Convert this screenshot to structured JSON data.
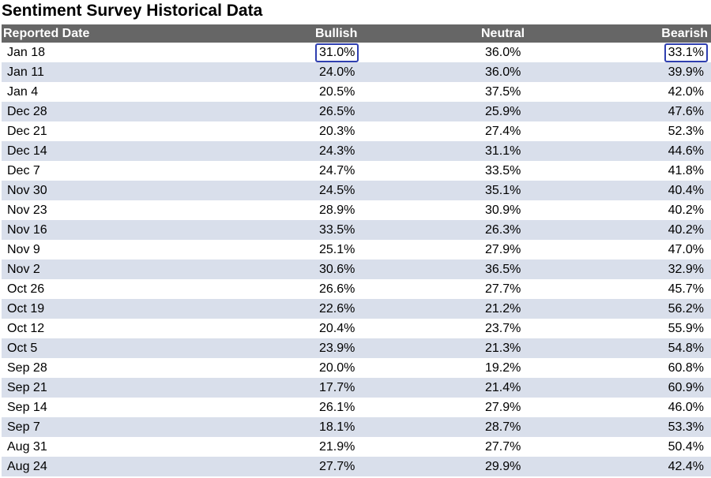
{
  "title": "Sentiment Survey Historical Data",
  "headers": {
    "date": "Reported Date",
    "bullish": "Bullish",
    "neutral": "Neutral",
    "bearish": "Bearish"
  },
  "highlight_color": "#2f3fb0",
  "header_bg": "#666666",
  "stripe_color": "#d9dfeb",
  "rows": [
    {
      "date": "Jan 18",
      "bullish": "31.0%",
      "neutral": "36.0%",
      "bearish": "33.1%",
      "hl_bullish": true,
      "hl_bearish": true
    },
    {
      "date": "Jan 11",
      "bullish": "24.0%",
      "neutral": "36.0%",
      "bearish": "39.9%"
    },
    {
      "date": "Jan 4",
      "bullish": "20.5%",
      "neutral": "37.5%",
      "bearish": "42.0%"
    },
    {
      "date": "Dec 28",
      "bullish": "26.5%",
      "neutral": "25.9%",
      "bearish": "47.6%"
    },
    {
      "date": "Dec 21",
      "bullish": "20.3%",
      "neutral": "27.4%",
      "bearish": "52.3%"
    },
    {
      "date": "Dec 14",
      "bullish": "24.3%",
      "neutral": "31.1%",
      "bearish": "44.6%"
    },
    {
      "date": "Dec 7",
      "bullish": "24.7%",
      "neutral": "33.5%",
      "bearish": "41.8%"
    },
    {
      "date": "Nov 30",
      "bullish": "24.5%",
      "neutral": "35.1%",
      "bearish": "40.4%"
    },
    {
      "date": "Nov 23",
      "bullish": "28.9%",
      "neutral": "30.9%",
      "bearish": "40.2%"
    },
    {
      "date": "Nov 16",
      "bullish": "33.5%",
      "neutral": "26.3%",
      "bearish": "40.2%"
    },
    {
      "date": "Nov 9",
      "bullish": "25.1%",
      "neutral": "27.9%",
      "bearish": "47.0%"
    },
    {
      "date": "Nov 2",
      "bullish": "30.6%",
      "neutral": "36.5%",
      "bearish": "32.9%"
    },
    {
      "date": "Oct 26",
      "bullish": "26.6%",
      "neutral": "27.7%",
      "bearish": "45.7%"
    },
    {
      "date": "Oct 19",
      "bullish": "22.6%",
      "neutral": "21.2%",
      "bearish": "56.2%"
    },
    {
      "date": "Oct 12",
      "bullish": "20.4%",
      "neutral": "23.7%",
      "bearish": "55.9%"
    },
    {
      "date": "Oct 5",
      "bullish": "23.9%",
      "neutral": "21.3%",
      "bearish": "54.8%"
    },
    {
      "date": "Sep 28",
      "bullish": "20.0%",
      "neutral": "19.2%",
      "bearish": "60.8%"
    },
    {
      "date": "Sep 21",
      "bullish": "17.7%",
      "neutral": "21.4%",
      "bearish": "60.9%"
    },
    {
      "date": "Sep 14",
      "bullish": "26.1%",
      "neutral": "27.9%",
      "bearish": "46.0%"
    },
    {
      "date": "Sep 7",
      "bullish": "18.1%",
      "neutral": "28.7%",
      "bearish": "53.3%"
    },
    {
      "date": "Aug 31",
      "bullish": "21.9%",
      "neutral": "27.7%",
      "bearish": "50.4%"
    },
    {
      "date": "Aug 24",
      "bullish": "27.7%",
      "neutral": "29.9%",
      "bearish": "42.4%"
    }
  ]
}
